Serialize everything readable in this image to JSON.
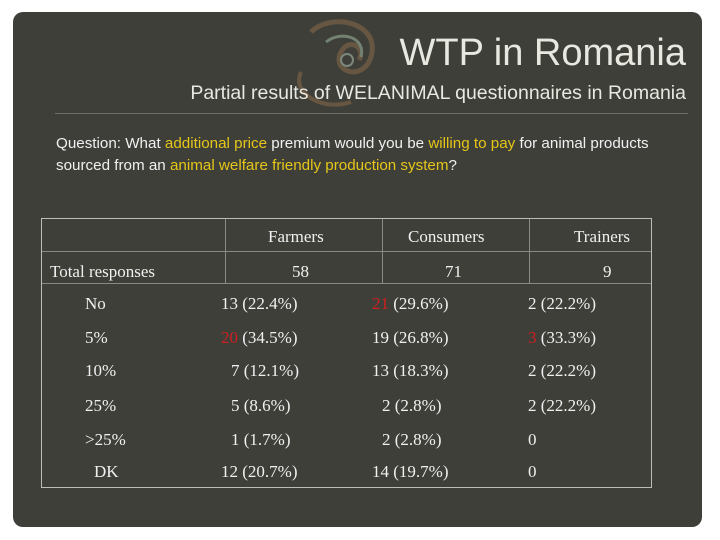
{
  "header": {
    "title": "WTP in Romania",
    "subtitle": "Partial results of WELANIMAL questionnaires in Romania"
  },
  "question": {
    "parts": [
      {
        "text": "Question: What ",
        "highlight": false
      },
      {
        "text": "additional price",
        "highlight": true
      },
      {
        "text": " premium would you be ",
        "highlight": false
      },
      {
        "text": "willing to pay",
        "highlight": true
      },
      {
        "text": " for animal products sourced from an ",
        "highlight": false
      },
      {
        "text": "animal welfare friendly production system",
        "highlight": true
      },
      {
        "text": "?",
        "highlight": false
      }
    ]
  },
  "table": {
    "columns": [
      "Farmers",
      "Consumers",
      "Trainers"
    ],
    "total_label": "Total responses",
    "totals": [
      "58",
      "71",
      "9"
    ],
    "rows": [
      {
        "label": "No",
        "cells": [
          {
            "n": "13",
            "pct": "(22.4%)"
          },
          {
            "n": "21",
            "pct": "(29.6%)",
            "n_red": true
          },
          {
            "n": "2",
            "pct": "(22.2%)"
          }
        ]
      },
      {
        "label": "5%",
        "cells": [
          {
            "n": "20",
            "pct": "(34.5%)",
            "n_red": true
          },
          {
            "n": "19",
            "pct": "(26.8%)"
          },
          {
            "n": "3",
            "pct": "(33.3%)",
            "n_red": true
          }
        ]
      },
      {
        "label": "10%",
        "cells": [
          {
            "n": "7",
            "pct": "(12.1%)"
          },
          {
            "n": "13",
            "pct": "(18.3%)"
          },
          {
            "n": "2",
            "pct": "(22.2%)"
          }
        ]
      },
      {
        "label": "25%",
        "cells": [
          {
            "n": "5",
            "pct": "(8.6%)"
          },
          {
            "n": "2",
            "pct": "(2.8%)"
          },
          {
            "n": "2",
            "pct": "(22.2%)"
          }
        ]
      },
      {
        "label": ">25%",
        "cells": [
          {
            "n": "1",
            "pct": "(1.7%)"
          },
          {
            "n": "2",
            "pct": "(2.8%)"
          },
          {
            "n": "0",
            "pct": ""
          }
        ]
      },
      {
        "label": "DK",
        "cells": [
          {
            "n": "12",
            "pct": "(20.7%)"
          },
          {
            "n": "14",
            "pct": "(19.7%)"
          },
          {
            "n": "0",
            "pct": ""
          }
        ]
      }
    ]
  },
  "colors": {
    "background": "#3e3f39",
    "highlight": "#e6c619",
    "red": "#d01f1f",
    "text": "#f0f0f0"
  }
}
